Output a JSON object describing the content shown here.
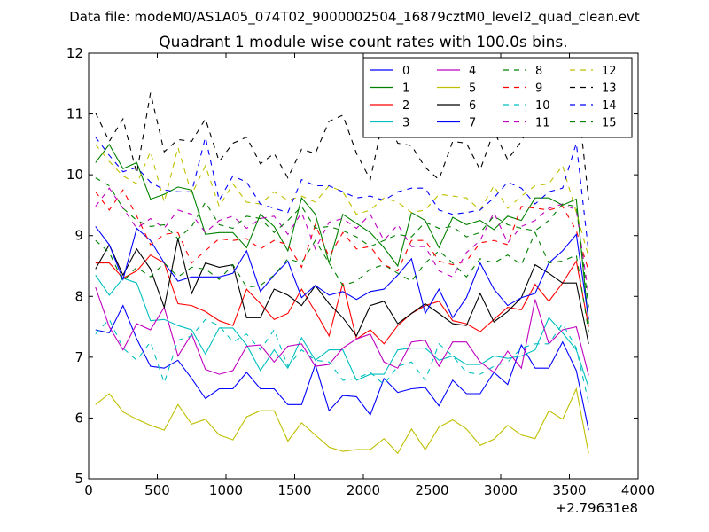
{
  "figure": {
    "suptitle": "Data file: modeM0/AS1A05_074T02_9000002504_16879cztM0_level2_quad_clean.evt"
  },
  "chart_data": {
    "type": "line",
    "title": "Quadrant 1 module wise count rates with 100.0s bins.",
    "xlabel": "",
    "ylabel": "",
    "x_offset_label": "+2.79631e8",
    "xlim": [
      0,
      4000
    ],
    "ylim": [
      5,
      12
    ],
    "xticks": [
      0,
      500,
      1000,
      1500,
      2000,
      2500,
      3000,
      3500,
      4000
    ],
    "yticks": [
      5,
      6,
      7,
      8,
      9,
      10,
      11,
      12
    ],
    "grid": false,
    "legend_position": "top-right",
    "legend_columns": 4,
    "x": [
      50,
      150,
      250,
      350,
      450,
      550,
      650,
      750,
      850,
      950,
      1050,
      1150,
      1250,
      1350,
      1450,
      1550,
      1650,
      1750,
      1850,
      1950,
      2050,
      2150,
      2250,
      2350,
      2450,
      2550,
      2650,
      2750,
      2850,
      2950,
      3050,
      3150,
      3250,
      3350,
      3450,
      3550,
      3640
    ],
    "series": [
      {
        "name": "0",
        "color": "#0000ff",
        "dash": "solid",
        "values": [
          7.45,
          7.4,
          7.85,
          7.3,
          6.85,
          6.82,
          6.95,
          6.65,
          6.32,
          6.48,
          6.48,
          6.75,
          6.48,
          6.48,
          6.22,
          6.22,
          6.88,
          6.12,
          6.37,
          6.35,
          6.05,
          6.65,
          6.42,
          6.48,
          6.5,
          6.2,
          6.62,
          6.4,
          6.4,
          6.75,
          6.55,
          7.2,
          6.82,
          6.82,
          7.25,
          6.78,
          5.8
        ]
      },
      {
        "name": "1",
        "color": "#008000",
        "dash": "solid",
        "values": [
          10.2,
          10.5,
          10.1,
          10.2,
          9.6,
          9.68,
          9.8,
          9.75,
          9.02,
          9.05,
          9.05,
          8.8,
          9.35,
          9.15,
          8.75,
          9.62,
          9.35,
          8.55,
          9.35,
          9.2,
          9.05,
          8.8,
          8.5,
          9.38,
          9.25,
          8.8,
          9.3,
          9.18,
          9.25,
          9.1,
          9.32,
          9.25,
          9.62,
          9.62,
          9.5,
          9.6,
          7.55
        ]
      },
      {
        "name": "2",
        "color": "#ff0000",
        "dash": "solid",
        "values": [
          8.55,
          8.55,
          8.3,
          8.42,
          8.68,
          8.55,
          7.88,
          7.85,
          7.75,
          7.6,
          7.52,
          8.12,
          7.88,
          7.62,
          7.72,
          8.12,
          7.75,
          7.35,
          8.22,
          7.3,
          7.45,
          7.22,
          7.52,
          7.72,
          7.85,
          7.92,
          7.6,
          7.55,
          7.42,
          7.62,
          7.82,
          7.78,
          8.2,
          7.92,
          8.22,
          8.58,
          7.5
        ]
      },
      {
        "name": "3",
        "color": "#00bfbf",
        "dash": "solid",
        "values": [
          8.35,
          8.02,
          8.3,
          8.22,
          7.6,
          7.62,
          7.52,
          7.45,
          7.05,
          7.48,
          7.48,
          7.2,
          6.78,
          7.12,
          6.82,
          7.32,
          6.95,
          7.12,
          7.12,
          6.62,
          6.72,
          6.72,
          7.12,
          7.15,
          7.15,
          6.95,
          7.02,
          6.88,
          6.88,
          7.02,
          6.98,
          7.02,
          7.12,
          7.65,
          7.4,
          7.12,
          6.5
        ]
      },
      {
        "name": "4",
        "color": "#bf00bf",
        "dash": "solid",
        "values": [
          8.15,
          7.5,
          7.12,
          7.55,
          7.45,
          7.82,
          7.02,
          7.38,
          6.8,
          6.72,
          6.78,
          7.18,
          7.2,
          6.92,
          7.18,
          7.22,
          6.85,
          6.88,
          7.15,
          7.3,
          7.38,
          6.92,
          6.82,
          7.25,
          7.28,
          6.85,
          7.25,
          7.25,
          6.92,
          6.75,
          7.1,
          6.82,
          7.95,
          7.22,
          7.45,
          7.5,
          6.7
        ]
      },
      {
        "name": "5",
        "color": "#bfbf00",
        "dash": "solid",
        "values": [
          6.22,
          6.4,
          6.1,
          5.98,
          5.88,
          5.8,
          6.22,
          5.9,
          5.98,
          5.72,
          5.64,
          6.02,
          6.12,
          6.12,
          5.62,
          5.92,
          5.72,
          5.52,
          5.45,
          5.48,
          5.48,
          5.66,
          5.42,
          5.82,
          5.48,
          5.85,
          5.97,
          5.82,
          5.55,
          5.65,
          5.88,
          5.72,
          5.66,
          6.12,
          5.98,
          6.48,
          5.42
        ]
      },
      {
        "name": "6",
        "color": "#000000",
        "dash": "solid",
        "values": [
          8.45,
          8.85,
          8.35,
          8.78,
          8.45,
          7.82,
          8.95,
          8.05,
          8.55,
          8.48,
          8.52,
          7.65,
          7.65,
          8.12,
          8.02,
          7.85,
          8.18,
          7.88,
          7.65,
          7.35,
          7.85,
          7.92,
          7.55,
          7.72,
          7.88,
          7.72,
          7.55,
          7.52,
          8.05,
          7.58,
          7.75,
          7.98,
          8.52,
          8.38,
          8.22,
          8.22,
          7.22
        ]
      },
      {
        "name": "7",
        "color": "#0000ff",
        "dash": "solid",
        "values": [
          9.15,
          8.85,
          8.28,
          9.12,
          8.92,
          8.55,
          8.25,
          8.32,
          8.32,
          8.32,
          8.38,
          8.75,
          8.08,
          8.35,
          8.58,
          7.98,
          8.18,
          8.02,
          8.08,
          7.95,
          8.08,
          8.12,
          8.35,
          8.62,
          7.72,
          8.12,
          7.65,
          7.98,
          8.55,
          8.12,
          7.85,
          7.98,
          8.05,
          8.55,
          8.75,
          9.02,
          7.62
        ]
      },
      {
        "name": "8",
        "color": "#008000",
        "dash": "dashed",
        "values": [
          8.92,
          8.72,
          8.25,
          8.48,
          8.32,
          8.55,
          8.32,
          8.48,
          8.45,
          8.28,
          8.52,
          8.15,
          8.18,
          8.35,
          8.62,
          8.55,
          8.92,
          8.55,
          8.18,
          8.25,
          8.45,
          8.52,
          8.38,
          8.25,
          8.55,
          8.75,
          8.55,
          8.32,
          8.62,
          8.55,
          8.68,
          8.52,
          9.05,
          8.55,
          8.58,
          8.68,
          7.42
        ]
      },
      {
        "name": "9",
        "color": "#ff0000",
        "dash": "dashed",
        "values": [
          9.72,
          9.42,
          9.75,
          9.32,
          8.85,
          9.02,
          9.05,
          8.55,
          8.75,
          8.95,
          8.92,
          8.95,
          8.78,
          8.92,
          8.85,
          8.48,
          9.18,
          8.65,
          9.05,
          8.78,
          8.82,
          8.52,
          8.42,
          8.92,
          8.92,
          8.58,
          8.52,
          8.58,
          8.88,
          8.92,
          8.85,
          9.48,
          9.45,
          9.42,
          9.48,
          9.08,
          8.42
        ]
      },
      {
        "name": "10",
        "color": "#00bfbf",
        "dash": "dashed",
        "values": [
          7.38,
          7.62,
          7.15,
          6.95,
          7.25,
          6.58,
          7.28,
          7.35,
          7.62,
          7.52,
          7.25,
          7.38,
          7.12,
          7.45,
          6.85,
          7.12,
          6.95,
          6.92,
          6.62,
          6.65,
          6.75,
          6.55,
          6.85,
          6.92,
          6.62,
          7.22,
          7.02,
          6.75,
          6.72,
          6.85,
          6.92,
          7.15,
          7.22,
          7.22,
          7.55,
          7.15,
          6.25
        ]
      },
      {
        "name": "11",
        "color": "#bf00bf",
        "dash": "dashed",
        "values": [
          9.48,
          9.78,
          9.45,
          9.12,
          9.28,
          9.12,
          9.42,
          9.35,
          9.05,
          9.25,
          9.32,
          9.12,
          9.28,
          9.32,
          9.02,
          9.38,
          8.78,
          9.22,
          9.28,
          9.12,
          9.35,
          8.92,
          9.18,
          8.82,
          8.82,
          8.42,
          8.32,
          8.72,
          8.92,
          9.38,
          8.88,
          9.15,
          9.25,
          9.45,
          9.52,
          9.42,
          8.02
        ]
      },
      {
        "name": "12",
        "color": "#bfbf00",
        "dash": "dashed",
        "values": [
          10.5,
          10.22,
          9.98,
          9.85,
          10.38,
          9.55,
          10.45,
          9.68,
          10.15,
          9.48,
          9.85,
          9.55,
          9.52,
          9.72,
          9.58,
          9.65,
          9.55,
          9.82,
          9.72,
          9.35,
          9.42,
          9.62,
          9.55,
          9.38,
          9.42,
          9.68,
          9.65,
          9.62,
          9.42,
          9.82,
          9.45,
          9.65,
          9.82,
          9.85,
          10.15,
          9.38,
          8.65
        ]
      },
      {
        "name": "13",
        "color": "#000000",
        "dash": "dashed",
        "values": [
          11.02,
          10.55,
          10.92,
          10.02,
          11.35,
          10.38,
          10.58,
          10.55,
          10.92,
          10.22,
          10.52,
          10.62,
          10.18,
          10.35,
          9.95,
          10.42,
          10.35,
          10.88,
          10.98,
          10.35,
          9.92,
          10.98,
          10.52,
          10.48,
          10.12,
          9.92,
          10.55,
          10.52,
          10.08,
          10.72,
          10.25,
          10.55,
          10.98,
          10.62,
          11.12,
          11.48,
          9.58
        ]
      },
      {
        "name": "14",
        "color": "#0000ff",
        "dash": "dashed",
        "values": [
          10.62,
          10.32,
          10.05,
          10.12,
          9.88,
          9.75,
          9.72,
          9.72,
          10.62,
          9.58,
          9.98,
          9.88,
          9.52,
          9.45,
          9.38,
          9.92,
          9.82,
          9.82,
          9.72,
          9.62,
          9.65,
          9.58,
          9.72,
          9.78,
          9.78,
          9.42,
          9.35,
          9.38,
          9.42,
          9.62,
          9.88,
          9.78,
          9.52,
          9.72,
          9.78,
          10.52,
          8.72
        ]
      },
      {
        "name": "15",
        "color": "#008000",
        "dash": "dashed",
        "values": [
          9.95,
          9.82,
          9.45,
          9.25,
          9.15,
          9.18,
          8.95,
          9.15,
          9.55,
          9.18,
          9.12,
          9.32,
          9.28,
          9.05,
          9.25,
          9.48,
          9.12,
          9.15,
          9.08,
          8.98,
          8.82,
          8.92,
          9.02,
          8.98,
          9.22,
          9.12,
          9.15,
          8.98,
          9.05,
          9.32,
          9.18,
          9.12,
          9.08,
          9.25,
          9.52,
          9.48,
          7.82
        ]
      }
    ]
  }
}
